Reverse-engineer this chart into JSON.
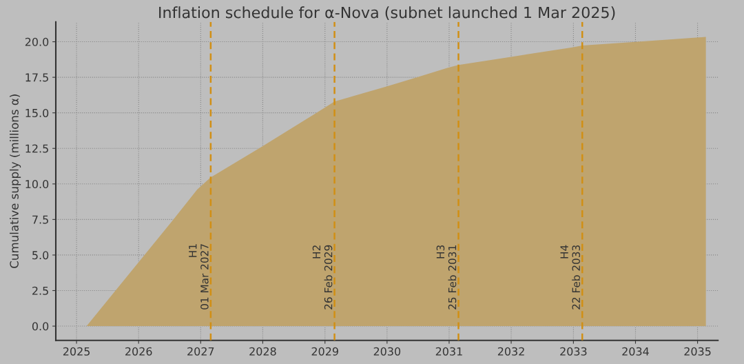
{
  "chart_data": {
    "type": "area",
    "title": "Inflation schedule for α-Nova (subnet launched 1 Mar 2025)",
    "ylabel": "Cumulative supply (millions α)",
    "x": [
      "2025-03-01",
      "2026-07-30",
      "2026-12-12",
      "2027-03-01",
      "2027-12-25",
      "2028-11-15",
      "2029-02-26",
      "2029-12-25",
      "2030-07-01",
      "2030-12-25",
      "2031-02-25",
      "2032-01-01",
      "2033-01-01",
      "2033-02-22",
      "2034-01-01",
      "2035-02-19"
    ],
    "series": [
      {
        "color": "#bfa46e",
        "values": [
          0,
          7.58,
          9.62,
          10.46,
          12.61,
          15.02,
          15.8,
          16.84,
          17.52,
          18.17,
          18.37,
          18.94,
          19.62,
          19.74,
          19.99,
          20.34
        ]
      }
    ],
    "xlim": [
      "2024-09-01",
      "2035-05-01"
    ],
    "xticks": [
      {
        "value": "2025-01-01",
        "label": "2025"
      },
      {
        "value": "2026-01-01",
        "label": "2026"
      },
      {
        "value": "2027-01-01",
        "label": "2027"
      },
      {
        "value": "2028-01-01",
        "label": "2028"
      },
      {
        "value": "2029-01-01",
        "label": "2029"
      },
      {
        "value": "2030-01-01",
        "label": "2030"
      },
      {
        "value": "2031-01-01",
        "label": "2031"
      },
      {
        "value": "2032-01-01",
        "label": "2032"
      },
      {
        "value": "2033-01-01",
        "label": "2033"
      },
      {
        "value": "2034-01-01",
        "label": "2034"
      },
      {
        "value": "2035-01-01",
        "label": "2035"
      }
    ],
    "ylim": [
      -1.0,
      21.4
    ],
    "yticks": [
      {
        "value": 0,
        "label": "0.0"
      },
      {
        "value": 2.5,
        "label": "2.5"
      },
      {
        "value": 5,
        "label": "5.0"
      },
      {
        "value": 7.5,
        "label": "7.5"
      },
      {
        "value": 10,
        "label": "10.0"
      },
      {
        "value": 12.5,
        "label": "12.5"
      },
      {
        "value": 15,
        "label": "15.0"
      },
      {
        "value": 17.5,
        "label": "17.5"
      },
      {
        "value": 20,
        "label": "20.0"
      }
    ],
    "ref_lines": [
      {
        "axis": "x",
        "value": "2027-03-01",
        "label": "H1\n01 Mar 2027",
        "color": "#d18f14",
        "line_style": "dashed"
      },
      {
        "axis": "x",
        "value": "2029-02-26",
        "label": "H2\n26 Feb 2029",
        "color": "#d18f14",
        "line_style": "dashed"
      },
      {
        "axis": "x",
        "value": "2031-02-25",
        "label": "H3\n25 Feb 2031",
        "color": "#d18f14",
        "line_style": "dashed"
      },
      {
        "axis": "x",
        "value": "2033-02-22",
        "label": "H4\n22 Feb 2033",
        "color": "#d18f14",
        "line_style": "dashed"
      }
    ],
    "grid": true,
    "legend": false
  }
}
